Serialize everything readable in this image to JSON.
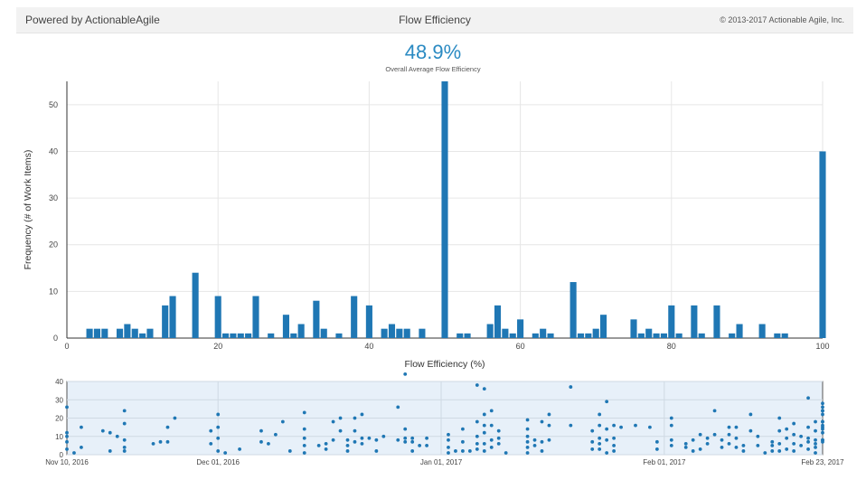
{
  "header": {
    "left": "Powered by ActionableAgile",
    "center": "Flow Efficiency",
    "right": "© 2013-2017 Actionable Agile, Inc."
  },
  "metric": {
    "value": "48.9%",
    "label": "Overall Average Flow Efficiency"
  },
  "colors": {
    "bar": "#1f77b4",
    "point": "#1f77b4",
    "grid": "#e6e6e6",
    "rangeBg": "#e7f0f9"
  },
  "chart_data": [
    {
      "type": "bar",
      "xlabel": "Flow Efficiency (%)",
      "ylabel": "Frequency (# of Work Items)",
      "xlim": [
        0,
        100
      ],
      "ylim": [
        0,
        55
      ],
      "xticks": [
        0,
        20,
        40,
        60,
        80,
        100
      ],
      "yticks": [
        0,
        10,
        20,
        30,
        40,
        50
      ],
      "grid": true,
      "x": [
        3,
        4,
        5,
        7,
        8,
        9,
        10,
        11,
        13,
        14,
        17,
        20,
        21,
        22,
        23,
        24,
        25,
        27,
        29,
        30,
        31,
        33,
        34,
        36,
        38,
        40,
        42,
        43,
        44,
        45,
        47,
        50,
        52,
        53,
        56,
        57,
        58,
        59,
        60,
        62,
        63,
        64,
        67,
        68,
        69,
        70,
        71,
        75,
        76,
        77,
        78,
        79,
        80,
        81,
        83,
        84,
        86,
        88,
        89,
        92,
        94,
        95,
        100
      ],
      "values": [
        2,
        2,
        2,
        2,
        3,
        2,
        1,
        2,
        7,
        9,
        14,
        9,
        1,
        1,
        1,
        1,
        9,
        1,
        5,
        1,
        3,
        8,
        2,
        1,
        9,
        7,
        2,
        3,
        2,
        2,
        2,
        55,
        1,
        1,
        3,
        7,
        2,
        1,
        4,
        1,
        2,
        1,
        12,
        1,
        1,
        2,
        5,
        4,
        1,
        2,
        1,
        1,
        7,
        1,
        7,
        1,
        7,
        1,
        3,
        3,
        1,
        1,
        40
      ]
    },
    {
      "type": "scatter",
      "xlim": [
        "2016-11-10",
        "2017-02-23"
      ],
      "ylim": [
        0,
        40
      ],
      "yticks": [
        0,
        10,
        20,
        30,
        40
      ],
      "xticks": [
        "Nov 10, 2016",
        "Dec 01, 2016",
        "Jan 01, 2017",
        "Feb 01, 2017",
        "Feb 23, 2017"
      ],
      "points": [
        [
          "2016-11-10",
          26
        ],
        [
          "2016-11-10",
          12
        ],
        [
          "2016-11-10",
          10
        ],
        [
          "2016-11-10",
          7
        ],
        [
          "2016-11-10",
          3
        ],
        [
          "2016-11-11",
          1
        ],
        [
          "2016-11-12",
          15
        ],
        [
          "2016-11-12",
          4
        ],
        [
          "2016-11-15",
          13
        ],
        [
          "2016-11-16",
          12
        ],
        [
          "2016-11-16",
          2
        ],
        [
          "2016-11-17",
          10
        ],
        [
          "2016-11-18",
          24
        ],
        [
          "2016-11-18",
          17
        ],
        [
          "2016-11-18",
          8
        ],
        [
          "2016-11-18",
          4
        ],
        [
          "2016-11-18",
          2
        ],
        [
          "2016-11-22",
          6
        ],
        [
          "2016-11-23",
          7
        ],
        [
          "2016-11-24",
          15
        ],
        [
          "2016-11-24",
          7
        ],
        [
          "2016-11-25",
          20
        ],
        [
          "2016-11-30",
          13
        ],
        [
          "2016-11-30",
          6
        ],
        [
          "2016-12-01",
          22
        ],
        [
          "2016-12-01",
          15
        ],
        [
          "2016-12-01",
          9
        ],
        [
          "2016-12-01",
          2
        ],
        [
          "2016-12-02",
          1
        ],
        [
          "2016-12-04",
          3
        ],
        [
          "2016-12-07",
          13
        ],
        [
          "2016-12-07",
          7
        ],
        [
          "2016-12-08",
          6
        ],
        [
          "2016-12-09",
          11
        ],
        [
          "2016-12-10",
          18
        ],
        [
          "2016-12-11",
          2
        ],
        [
          "2016-12-13",
          23
        ],
        [
          "2016-12-13",
          14
        ],
        [
          "2016-12-13",
          9
        ],
        [
          "2016-12-13",
          5
        ],
        [
          "2016-12-13",
          1
        ],
        [
          "2016-12-15",
          5
        ],
        [
          "2016-12-16",
          6
        ],
        [
          "2016-12-16",
          3
        ],
        [
          "2016-12-17",
          18
        ],
        [
          "2016-12-17",
          8
        ],
        [
          "2016-12-18",
          20
        ],
        [
          "2016-12-18",
          13
        ],
        [
          "2016-12-19",
          8
        ],
        [
          "2016-12-19",
          5
        ],
        [
          "2016-12-19",
          2
        ],
        [
          "2016-12-20",
          20
        ],
        [
          "2016-12-20",
          13
        ],
        [
          "2016-12-20",
          7
        ],
        [
          "2016-12-21",
          22
        ],
        [
          "2016-12-21",
          9
        ],
        [
          "2016-12-21",
          6
        ],
        [
          "2016-12-22",
          9
        ],
        [
          "2016-12-23",
          8
        ],
        [
          "2016-12-23",
          2
        ],
        [
          "2016-12-24",
          10
        ],
        [
          "2016-12-26",
          26
        ],
        [
          "2016-12-26",
          8
        ],
        [
          "2016-12-27",
          44
        ],
        [
          "2016-12-27",
          14
        ],
        [
          "2016-12-27",
          9
        ],
        [
          "2016-12-27",
          7
        ],
        [
          "2016-12-28",
          2
        ],
        [
          "2016-12-28",
          9
        ],
        [
          "2016-12-28",
          7
        ],
        [
          "2016-12-29",
          5
        ],
        [
          "2016-12-30",
          9
        ],
        [
          "2016-12-30",
          5
        ],
        [
          "2017-01-02",
          11
        ],
        [
          "2017-01-02",
          8
        ],
        [
          "2017-01-02",
          4
        ],
        [
          "2017-01-02",
          1
        ],
        [
          "2017-01-03",
          2
        ],
        [
          "2017-01-04",
          14
        ],
        [
          "2017-01-04",
          7
        ],
        [
          "2017-01-04",
          2
        ],
        [
          "2017-01-05",
          2
        ],
        [
          "2017-01-06",
          38
        ],
        [
          "2017-01-06",
          18
        ],
        [
          "2017-01-06",
          10
        ],
        [
          "2017-01-06",
          6
        ],
        [
          "2017-01-06",
          3
        ],
        [
          "2017-01-07",
          36
        ],
        [
          "2017-01-07",
          22
        ],
        [
          "2017-01-07",
          16
        ],
        [
          "2017-01-07",
          12
        ],
        [
          "2017-01-07",
          6
        ],
        [
          "2017-01-07",
          2
        ],
        [
          "2017-01-08",
          24
        ],
        [
          "2017-01-08",
          16
        ],
        [
          "2017-01-08",
          8
        ],
        [
          "2017-01-08",
          4
        ],
        [
          "2017-01-09",
          13
        ],
        [
          "2017-01-09",
          9
        ],
        [
          "2017-01-09",
          6
        ],
        [
          "2017-01-10",
          1
        ],
        [
          "2017-01-13",
          19
        ],
        [
          "2017-01-13",
          14
        ],
        [
          "2017-01-13",
          10
        ],
        [
          "2017-01-13",
          7
        ],
        [
          "2017-01-13",
          4
        ],
        [
          "2017-01-13",
          1
        ],
        [
          "2017-01-14",
          8
        ],
        [
          "2017-01-14",
          5
        ],
        [
          "2017-01-15",
          18
        ],
        [
          "2017-01-15",
          7
        ],
        [
          "2017-01-15",
          2
        ],
        [
          "2017-01-16",
          22
        ],
        [
          "2017-01-16",
          16
        ],
        [
          "2017-01-16",
          8
        ],
        [
          "2017-01-19",
          37
        ],
        [
          "2017-01-19",
          16
        ],
        [
          "2017-01-22",
          13
        ],
        [
          "2017-01-22",
          7
        ],
        [
          "2017-01-22",
          3
        ],
        [
          "2017-01-23",
          22
        ],
        [
          "2017-01-23",
          16
        ],
        [
          "2017-01-23",
          9
        ],
        [
          "2017-01-23",
          6
        ],
        [
          "2017-01-23",
          3
        ],
        [
          "2017-01-24",
          29
        ],
        [
          "2017-01-24",
          14
        ],
        [
          "2017-01-24",
          8
        ],
        [
          "2017-01-24",
          1
        ],
        [
          "2017-01-25",
          16
        ],
        [
          "2017-01-25",
          9
        ],
        [
          "2017-01-25",
          5
        ],
        [
          "2017-01-25",
          2
        ],
        [
          "2017-01-26",
          15
        ],
        [
          "2017-01-28",
          16
        ],
        [
          "2017-01-30",
          15
        ],
        [
          "2017-01-31",
          7
        ],
        [
          "2017-01-31",
          3
        ],
        [
          "2017-02-02",
          20
        ],
        [
          "2017-02-02",
          16
        ],
        [
          "2017-02-02",
          8
        ],
        [
          "2017-02-02",
          5
        ],
        [
          "2017-02-04",
          6
        ],
        [
          "2017-02-04",
          4
        ],
        [
          "2017-02-05",
          8
        ],
        [
          "2017-02-05",
          2
        ],
        [
          "2017-02-06",
          11
        ],
        [
          "2017-02-06",
          3
        ],
        [
          "2017-02-07",
          9
        ],
        [
          "2017-02-07",
          6
        ],
        [
          "2017-02-08",
          24
        ],
        [
          "2017-02-08",
          11
        ],
        [
          "2017-02-09",
          8
        ],
        [
          "2017-02-09",
          4
        ],
        [
          "2017-02-10",
          15
        ],
        [
          "2017-02-10",
          11
        ],
        [
          "2017-02-10",
          6
        ],
        [
          "2017-02-11",
          15
        ],
        [
          "2017-02-11",
          9
        ],
        [
          "2017-02-11",
          4
        ],
        [
          "2017-02-12",
          5
        ],
        [
          "2017-02-12",
          2
        ],
        [
          "2017-02-13",
          22
        ],
        [
          "2017-02-13",
          13
        ],
        [
          "2017-02-14",
          10
        ],
        [
          "2017-02-14",
          5
        ],
        [
          "2017-02-15",
          1
        ],
        [
          "2017-02-16",
          7
        ],
        [
          "2017-02-16",
          5
        ],
        [
          "2017-02-16",
          2
        ],
        [
          "2017-02-17",
          20
        ],
        [
          "2017-02-17",
          13
        ],
        [
          "2017-02-17",
          6
        ],
        [
          "2017-02-17",
          2
        ],
        [
          "2017-02-18",
          14
        ],
        [
          "2017-02-18",
          9
        ],
        [
          "2017-02-18",
          3
        ],
        [
          "2017-02-19",
          17
        ],
        [
          "2017-02-19",
          11
        ],
        [
          "2017-02-19",
          6
        ],
        [
          "2017-02-19",
          2
        ],
        [
          "2017-02-20",
          10
        ],
        [
          "2017-02-20",
          5
        ],
        [
          "2017-02-21",
          31
        ],
        [
          "2017-02-21",
          9
        ],
        [
          "2017-02-21",
          3
        ],
        [
          "2017-02-21",
          15
        ],
        [
          "2017-02-21",
          7
        ],
        [
          "2017-02-22",
          13
        ],
        [
          "2017-02-22",
          6
        ],
        [
          "2017-02-22",
          1
        ],
        [
          "2017-02-22",
          4
        ],
        [
          "2017-02-22",
          18
        ],
        [
          "2017-02-22",
          8
        ],
        [
          "2017-02-23",
          15
        ],
        [
          "2017-02-23",
          7
        ],
        [
          "2017-02-23",
          18
        ],
        [
          "2017-02-23",
          8
        ],
        [
          "2017-02-23",
          8
        ],
        [
          "2017-02-23",
          18
        ],
        [
          "2017-02-23",
          12
        ],
        [
          "2017-02-23",
          26
        ],
        [
          "2017-02-23",
          22
        ],
        [
          "2017-02-23",
          14
        ],
        [
          "2017-02-23",
          24
        ],
        [
          "2017-02-23",
          28
        ],
        [
          "2017-02-23",
          24
        ],
        [
          "2017-02-23",
          16
        ]
      ]
    }
  ]
}
